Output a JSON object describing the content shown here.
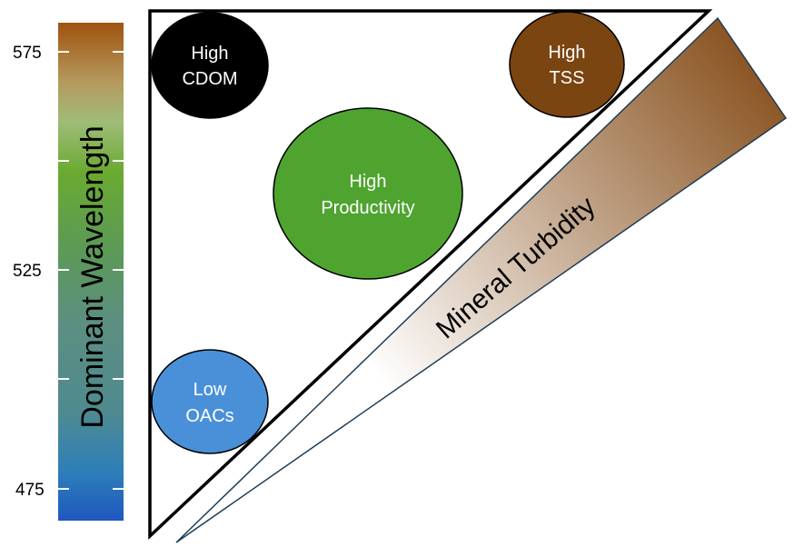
{
  "colorbar": {
    "title": "Dominant Wavelength",
    "ticks": [
      "575",
      "525",
      "475"
    ],
    "gradient_stops": [
      {
        "offset": 0.0,
        "color": "#a0520f"
      },
      {
        "offset": 0.12,
        "color": "#b59a5e"
      },
      {
        "offset": 0.2,
        "color": "#9fbc78"
      },
      {
        "offset": 0.3,
        "color": "#6aaa30"
      },
      {
        "offset": 0.45,
        "color": "#5c9a55"
      },
      {
        "offset": 0.6,
        "color": "#5c8f80"
      },
      {
        "offset": 0.78,
        "color": "#4f8a8f"
      },
      {
        "offset": 0.9,
        "color": "#2e7fb8"
      },
      {
        "offset": 1.0,
        "color": "#1f57c0"
      }
    ]
  },
  "bubbles": [
    {
      "id": "high-cdom",
      "lines": [
        "High",
        "CDOM"
      ],
      "color": "#000000"
    },
    {
      "id": "high-tss",
      "lines": [
        "High",
        "TSS"
      ],
      "color": "#7a4510"
    },
    {
      "id": "high-productivity",
      "lines": [
        "High",
        "Productivity"
      ],
      "color": "#4ea42f"
    },
    {
      "id": "low-oacs",
      "lines": [
        "Low",
        "OACs"
      ],
      "color": "#4a90d9"
    }
  ],
  "wedge": {
    "label": "Mineral Turbidity",
    "color_dark": "#8b5523",
    "color_light": "#ffffff"
  }
}
